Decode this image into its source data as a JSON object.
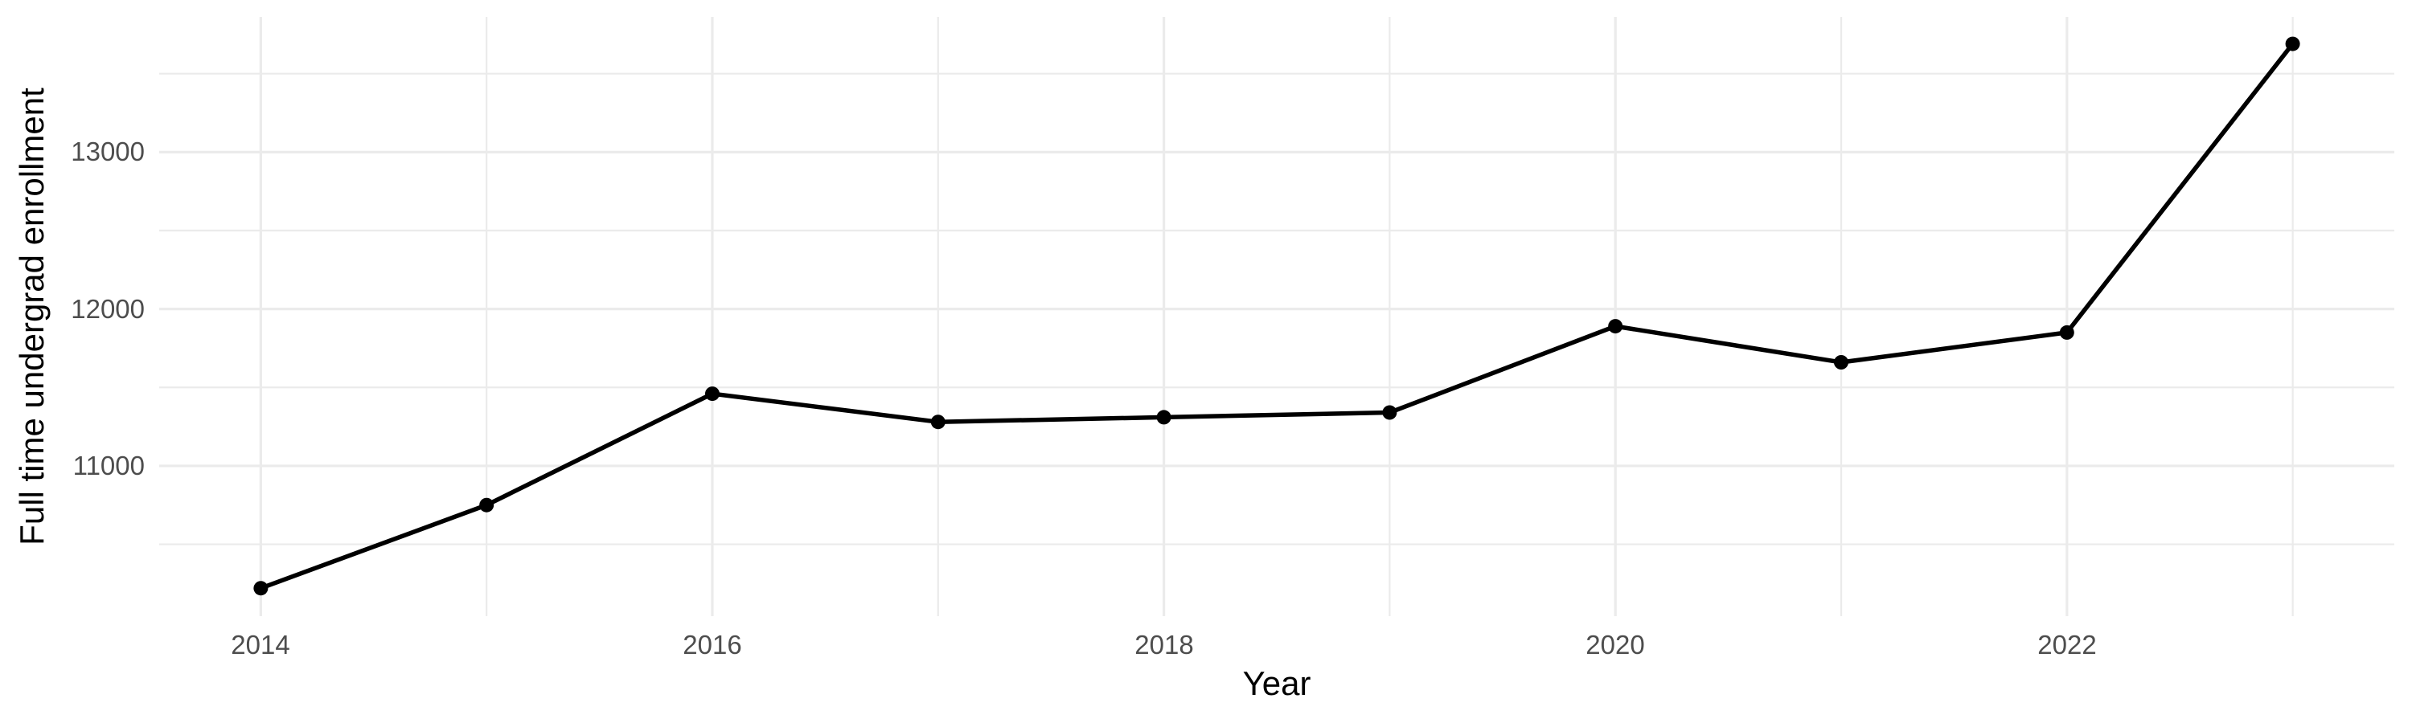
{
  "chart_data": {
    "type": "line",
    "title": "",
    "xlabel": "Year",
    "ylabel": "Full time undergrad enrollment",
    "x": [
      2014,
      2015,
      2016,
      2017,
      2018,
      2019,
      2020,
      2021,
      2022,
      2023
    ],
    "values": [
      10220,
      10750,
      11460,
      11280,
      11310,
      11340,
      11890,
      11660,
      11850,
      13690
    ],
    "x_major_ticks": [
      2014,
      2016,
      2018,
      2020,
      2022
    ],
    "x_minor_gridlines": [
      2015,
      2017,
      2019,
      2021,
      2023
    ],
    "y_major_ticks": [
      11000,
      12000,
      13000
    ],
    "y_minor_gridlines": [
      10500,
      11500,
      12500,
      13500
    ],
    "xlim": [
      2013.55,
      2023.45
    ],
    "ylim": [
      10042,
      13862
    ],
    "grid": "on",
    "legend": "none",
    "colors": {
      "line": "#000000",
      "point": "#000000",
      "grid_major": "#EBEBEB",
      "grid_minor": "#EBEBEB",
      "tick_text": "#4D4D4D",
      "axis_title_text": "#000000",
      "background": "#FFFFFF"
    }
  }
}
